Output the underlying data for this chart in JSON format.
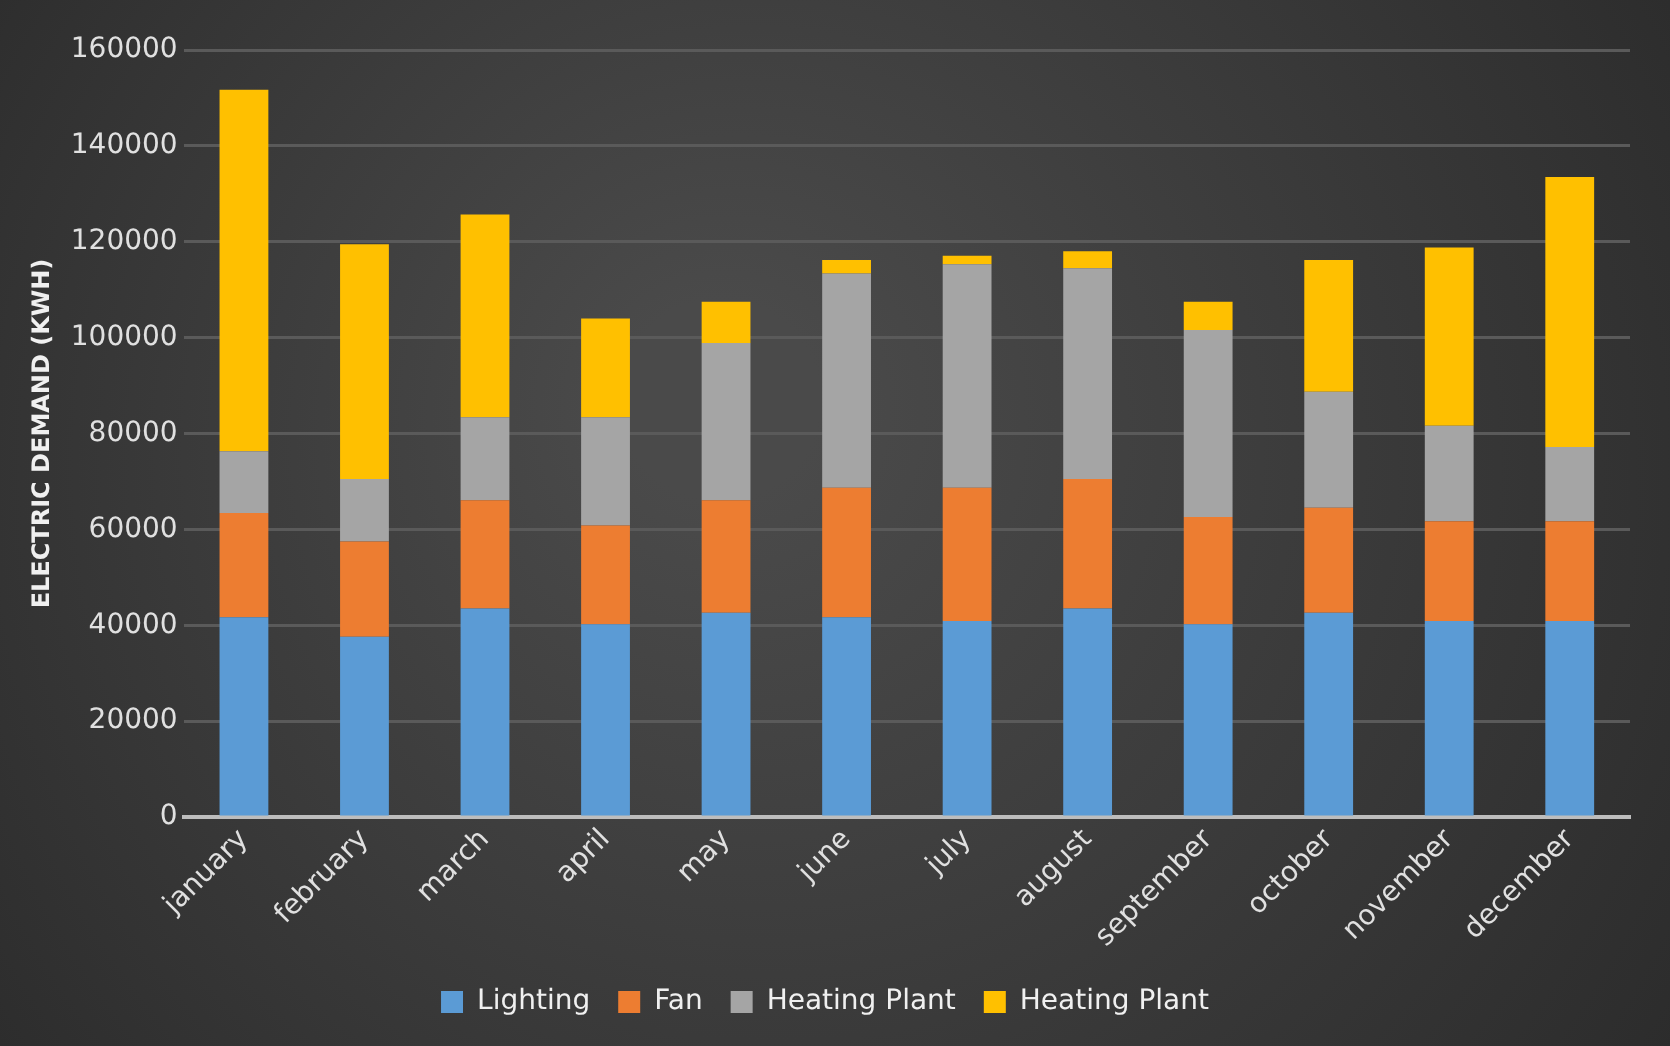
{
  "chart_data": {
    "type": "bar",
    "ylabel": "ELECTRIC DEMAND (KWH)",
    "categories": [
      "january",
      "february",
      "march",
      "april",
      "may",
      "june",
      "july",
      "august",
      "september",
      "october",
      "november",
      "december"
    ],
    "stacked": true,
    "series": [
      {
        "name": "Lighting",
        "color": "#5b9bd5",
        "values": [
          41700,
          37600,
          43500,
          40200,
          42600,
          41700,
          40900,
          43500,
          40200,
          42600,
          40900,
          40900
        ]
      },
      {
        "name": "Fan",
        "color": "#ed7d31",
        "values": [
          21700,
          19900,
          22600,
          20600,
          23500,
          27000,
          27800,
          27000,
          22400,
          21900,
          20800,
          20800
        ]
      },
      {
        "name": "Heating Plant",
        "color": "#a5a5a5",
        "values": [
          12900,
          13000,
          17300,
          22600,
          32800,
          44700,
          46600,
          44000,
          39000,
          24200,
          19900,
          15500
        ]
      },
      {
        "name": "Heating Plant",
        "color": "#ffc000",
        "values": [
          75400,
          49000,
          42300,
          20600,
          8600,
          2800,
          1800,
          3500,
          5900,
          27500,
          37200,
          56300
        ]
      }
    ],
    "ylim": [
      0,
      160000
    ],
    "yticks": [
      0,
      20000,
      40000,
      60000,
      80000,
      100000,
      120000,
      140000,
      160000
    ],
    "grid": "y",
    "legend": "bottom"
  }
}
